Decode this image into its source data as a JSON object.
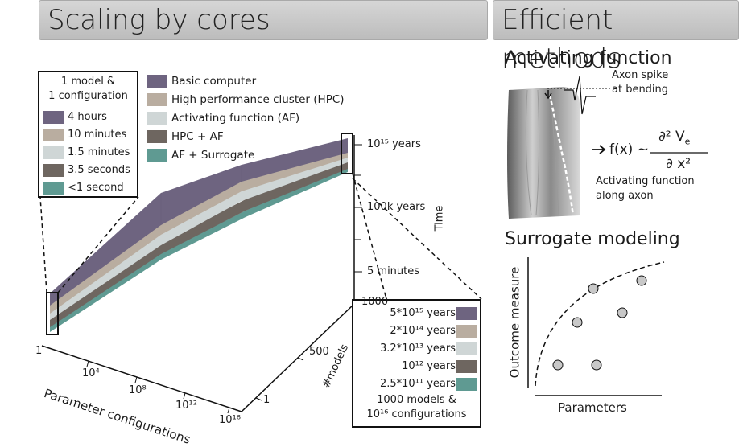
{
  "headers": {
    "left": "Scaling by cores",
    "right": "Efficient methods"
  },
  "legend": [
    {
      "label": "Basic computer",
      "color": "#6e6480"
    },
    {
      "label": "High performance cluster (HPC)",
      "color": "#b9ada0"
    },
    {
      "label": "Activating function (AF)",
      "color": "#cfd6d6"
    },
    {
      "label": "HPC + AF",
      "color": "#6e6660"
    },
    {
      "label": "AF + Surrogate",
      "color": "#5f9a92"
    }
  ],
  "box_small": {
    "title1": "1 model &",
    "title2": "1 configuration",
    "rows": [
      "4 hours",
      "10 minutes",
      "1.5 minutes",
      "3.5 seconds",
      "<1 second"
    ]
  },
  "box_large": {
    "rows": [
      "5*10¹⁵ years",
      "2*10¹⁴ years",
      "3.2*10¹³ years",
      "10¹² years",
      "2.5*10¹¹ years"
    ],
    "footer1": "1000 models &",
    "footer2": "10¹⁶ configurations"
  },
  "axes": {
    "time_ticks": [
      "10¹⁵ years",
      "100k years",
      "5 minutes"
    ],
    "time_label": "Time",
    "models_ticks": [
      "1000",
      "500",
      "1"
    ],
    "models_label": "#models",
    "param_ticks": [
      "1",
      "10⁴",
      "10⁸",
      "10¹²",
      "10¹⁶"
    ],
    "param_label": "Parameter configurations"
  },
  "af": {
    "title": "Activating function",
    "spike1": "Axon spike",
    "spike2": "at bending",
    "formula_lhs": "f(x) ~",
    "formula_num": "∂² V",
    "formula_sub": "e",
    "formula_den": "∂ x²",
    "desc1": "Activating function",
    "desc2": "along axon"
  },
  "surrogate": {
    "title": "Surrogate modeling",
    "ylabel": "Outcome measure",
    "xlabel": "Parameters"
  }
}
